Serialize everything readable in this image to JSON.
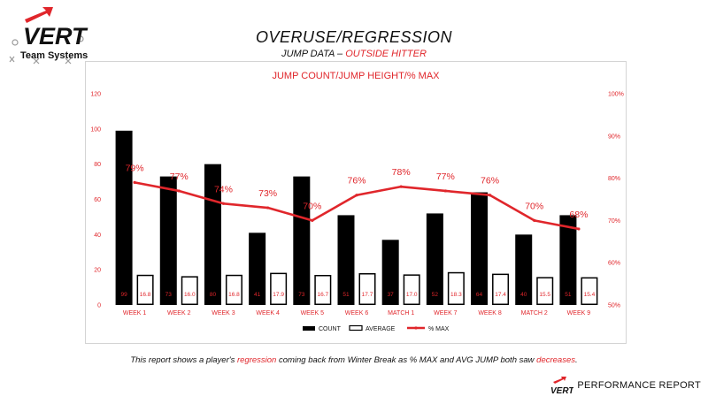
{
  "logo": {
    "mark": "VERT",
    "tagline": "Team Systems"
  },
  "header": {
    "title": "OVERUSE/REGRESSION",
    "subtitle_prefix": "JUMP DATA – ",
    "subtitle_highlight": "OUTSIDE HITTER"
  },
  "colors": {
    "accent": "#e0262b",
    "bar": "#000000",
    "average_fill": "#ffffff"
  },
  "chart_data": {
    "type": "bar",
    "title": "JUMP COUNT/JUMP HEIGHT/% MAX",
    "categories": [
      "WEEK 1",
      "WEEK 2",
      "WEEK 3",
      "WEEK 4",
      "WEEK 5",
      "WEEK 6",
      "MATCH 1",
      "WEEK 7",
      "WEEK 8",
      "MATCH 2",
      "WEEK 9"
    ],
    "series": [
      {
        "name": "COUNT",
        "kind": "bar",
        "axis": "left",
        "values": [
          99,
          73,
          80,
          41,
          73,
          51,
          37,
          52,
          64,
          40,
          51
        ],
        "value_labels": [
          "99",
          "73",
          "80",
          "41",
          "73",
          "51",
          "37",
          "52",
          "64",
          "40",
          "51"
        ]
      },
      {
        "name": "AVERAGE",
        "kind": "bar",
        "axis": "left",
        "values": [
          16.8,
          16.0,
          16.8,
          17.9,
          16.7,
          17.7,
          17.0,
          18.3,
          17.4,
          15.5,
          15.4
        ],
        "value_labels": [
          "16.8",
          "16.0",
          "16.8",
          "17.9",
          "16.7",
          "17.7",
          "17.0",
          "18.3",
          "17.4",
          "15.5",
          "15.4"
        ]
      },
      {
        "name": "% MAX",
        "kind": "line",
        "axis": "right",
        "values": [
          79,
          77,
          74,
          73,
          70,
          76,
          78,
          77,
          76,
          70,
          68
        ],
        "value_labels": [
          "79%",
          "77%",
          "74%",
          "73%",
          "70%",
          "76%",
          "78%",
          "77%",
          "76%",
          "70%",
          "68%"
        ]
      }
    ],
    "left_axis": {
      "min": 0,
      "max": 120,
      "ticks": [
        "0",
        "20",
        "40",
        "60",
        "80",
        "100",
        "120"
      ]
    },
    "right_axis": {
      "min": 50,
      "max": 100,
      "ticks": [
        "50%",
        "60%",
        "70%",
        "80%",
        "90%",
        "100%"
      ]
    },
    "legend": {
      "position": "bottom",
      "labels": [
        "COUNT",
        "AVERAGE",
        "% MAX"
      ]
    },
    "grid": false
  },
  "footer": {
    "note_part1": "This report shows a player's ",
    "note_highlight1": "regression",
    "note_part2": " coming back from Winter Break as % MAX and AVG JUMP both saw ",
    "note_highlight2": "decreases",
    "note_part3": ".",
    "brand_mark": "VERT",
    "brand_label": "PERFORMANCE REPORT"
  }
}
